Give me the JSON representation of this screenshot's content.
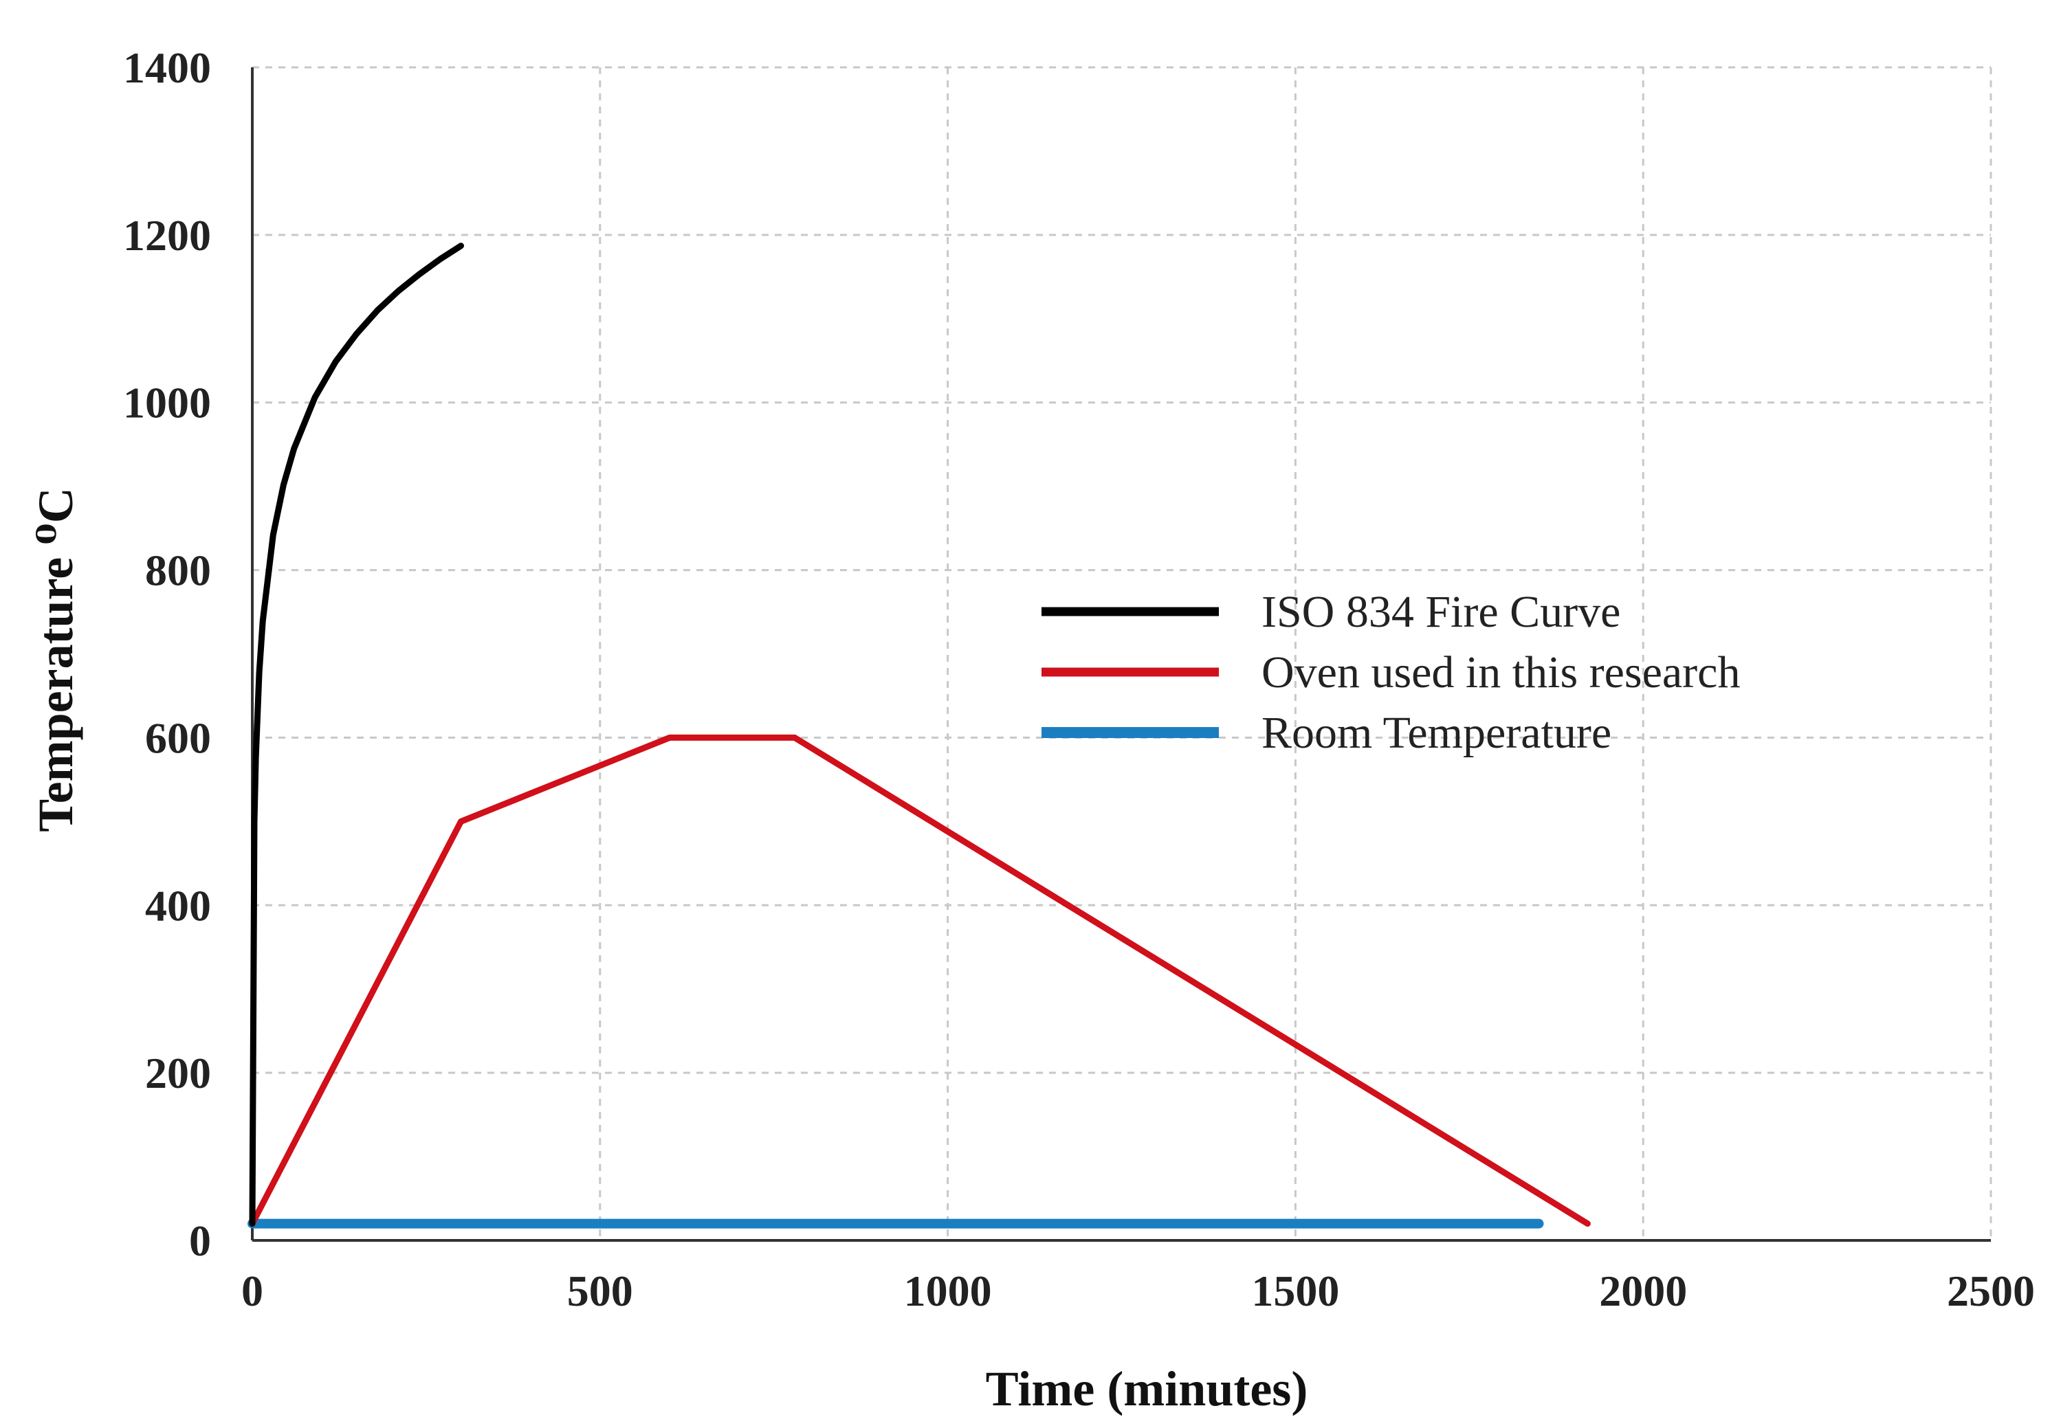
{
  "chart_data": {
    "type": "line",
    "title": "",
    "xlabel": "Time (minutes)",
    "ylabel": "Temperature ⁰C",
    "xlim": [
      0,
      2500
    ],
    "ylim": [
      0,
      1400
    ],
    "x_ticks": [
      "0",
      "500",
      "1000",
      "1500",
      "2000",
      "2500"
    ],
    "y_ticks": [
      "0",
      "200",
      "400",
      "600",
      "800",
      "1000",
      "1200",
      "1400"
    ],
    "grid": true,
    "legend_position": "center-right",
    "series": [
      {
        "name": "ISO 834 Fire Curve",
        "color": "#000000",
        "x": [
          0,
          3,
          5,
          10,
          15,
          30,
          45,
          60,
          90,
          120,
          150,
          180,
          210,
          240,
          270,
          300
        ],
        "y": [
          20,
          500,
          576,
          678,
          739,
          842,
          902,
          945,
          1006,
          1049,
          1082,
          1110,
          1133,
          1153,
          1171,
          1187
        ]
      },
      {
        "name": "Oven used in this research",
        "color": "#d0101a",
        "x": [
          0,
          300,
          600,
          780,
          1920
        ],
        "y": [
          20,
          500,
          600,
          600,
          20
        ]
      },
      {
        "name": "Room Temperature",
        "color": "#1a7fc1",
        "x": [
          0,
          1850
        ],
        "y": [
          20,
          20
        ]
      }
    ]
  }
}
